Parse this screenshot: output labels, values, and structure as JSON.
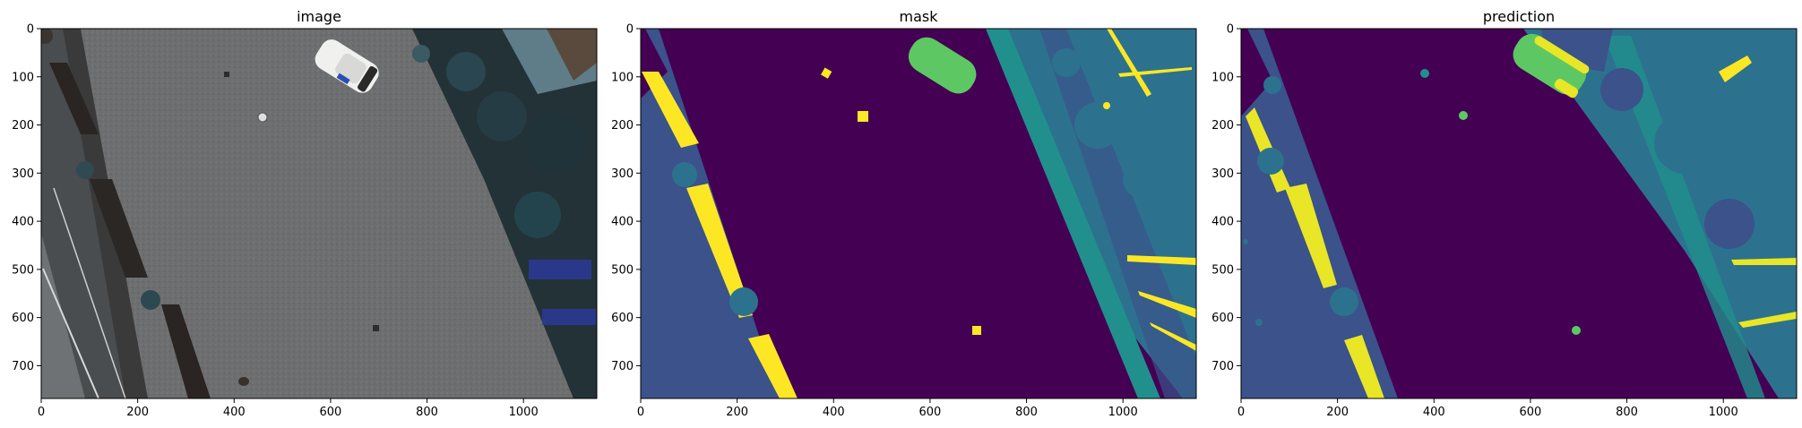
{
  "panels": [
    {
      "title": "image"
    },
    {
      "title": "mask"
    },
    {
      "title": "prediction"
    }
  ],
  "axes": {
    "x_ticks": [
      0,
      200,
      400,
      600,
      800,
      1000
    ],
    "y_ticks": [
      0,
      100,
      200,
      300,
      400,
      500,
      600,
      700
    ],
    "x_range": [
      0,
      1152
    ],
    "y_range": [
      768,
      0
    ]
  },
  "colors": {
    "bg_dark": "#440154",
    "lane_blue": "#3b528b",
    "teal": "#2c728e",
    "green_teal": "#21908d",
    "green": "#27ad81",
    "light_green": "#5dc863",
    "yellow": "#fde725",
    "photo_road": "#6e6f70",
    "photo_dark": "#2a2e30"
  }
}
